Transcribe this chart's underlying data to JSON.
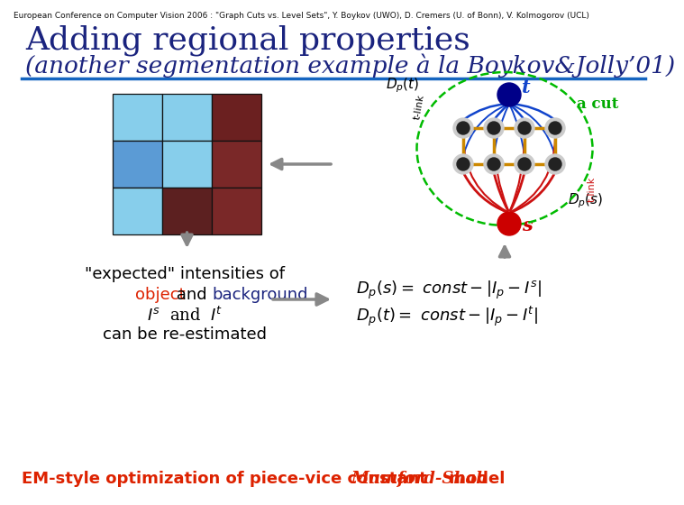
{
  "header_text": "European Conference on Computer Vision 2006 : \"Graph Cuts vs. Level Sets\", Y. Boykov (UWO), D. Cremers (U. of Bonn), V. Kolmogorov (UCL)",
  "title_line1": "Adding regional properties",
  "title_line2": "(another segmentation example à la Boykov&Jolly’01)",
  "header_fontsize": 6.5,
  "title_fontsize1": 26,
  "title_fontsize2": 19,
  "header_color": "#111111",
  "title_color": "#1a237e",
  "blue_line_color": "#1565c0",
  "grid_colors": [
    [
      "#87ceeb",
      "#87ceeb",
      "#6b2020"
    ],
    [
      "#5b9bd5",
      "#87ceeb",
      "#7a2828"
    ],
    [
      "#87ceeb",
      "#5c2020",
      "#7a2828"
    ]
  ],
  "arrow_color": "#888888",
  "object_color": "#dd2200",
  "background_color_text": "#1a237e",
  "bottom_color": "#dd2200",
  "background": "#ffffff",
  "src_color": "#000088",
  "snk_color": "#cc0000",
  "node_color": "#333333",
  "tlink_blue": "#1144cc",
  "tlink_red": "#cc1111",
  "nlink_color": "#cc8800",
  "green_cut": "#00bb00",
  "acut_color": "#00aa00"
}
